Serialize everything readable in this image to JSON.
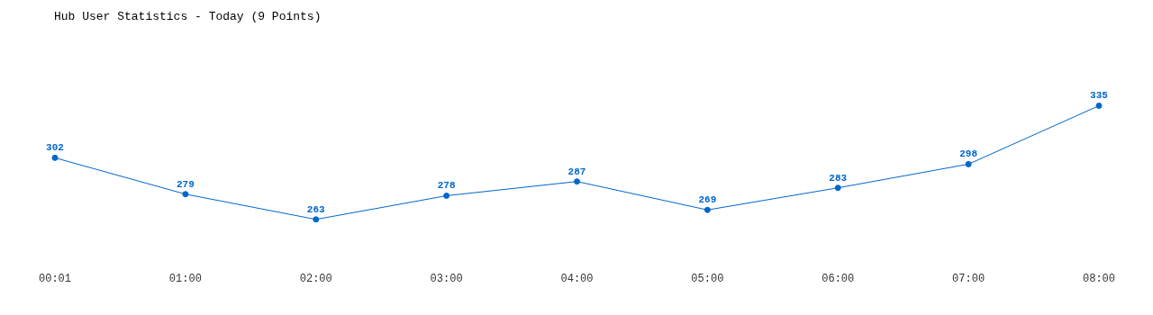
{
  "chart_data": {
    "type": "line",
    "title": "Hub User Statistics - Today (9 Points)",
    "categories": [
      "00:01",
      "01:00",
      "02:00",
      "03:00",
      "04:00",
      "05:00",
      "06:00",
      "07:00",
      "08:00"
    ],
    "series": [
      {
        "color": "#0066cc",
        "values": [
          302,
          279,
          263,
          278,
          287,
          269,
          283,
          298,
          335
        ]
      }
    ],
    "data_labels": true,
    "marker": "circle",
    "grid": false,
    "legend": false
  }
}
